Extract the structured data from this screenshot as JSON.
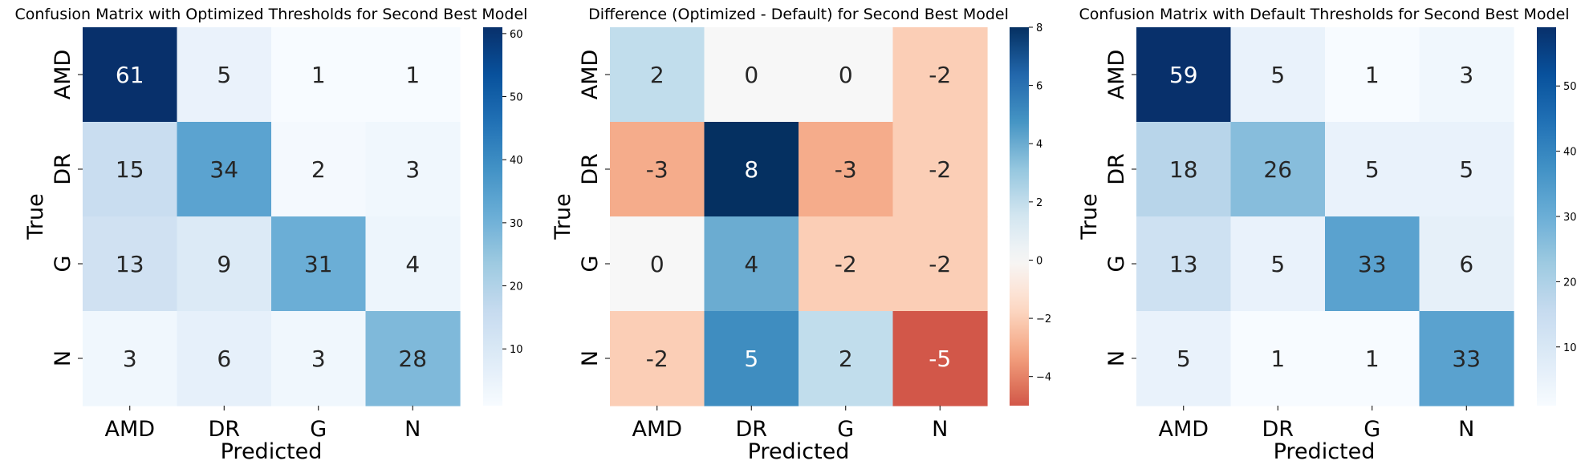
{
  "chart_data": [
    {
      "type": "heatmap",
      "title": "Confusion Matrix with Optimized Thresholds for Second Best Model",
      "xlabel": "Predicted",
      "ylabel": "True",
      "x_categories": [
        "AMD",
        "DR",
        "G",
        "N"
      ],
      "y_categories": [
        "AMD",
        "DR",
        "G",
        "N"
      ],
      "values": [
        [
          61,
          5,
          1,
          1
        ],
        [
          15,
          34,
          2,
          3
        ],
        [
          13,
          9,
          31,
          4
        ],
        [
          3,
          6,
          3,
          28
        ]
      ],
      "colormap": "Blues",
      "vmin": 1,
      "vmax": 61,
      "colorbar_ticks": [
        10,
        20,
        30,
        40,
        50,
        60
      ],
      "colorbar_tick_labels": [
        "10",
        "20",
        "30",
        "40",
        "50",
        "60"
      ]
    },
    {
      "type": "heatmap",
      "title": "Difference (Optimized - Default) for Second Best Model",
      "xlabel": "Predicted",
      "ylabel": "True",
      "x_categories": [
        "AMD",
        "DR",
        "G",
        "N"
      ],
      "y_categories": [
        "AMD",
        "DR",
        "G",
        "N"
      ],
      "values": [
        [
          2,
          0,
          0,
          -2
        ],
        [
          -3,
          8,
          -3,
          -2
        ],
        [
          0,
          4,
          -2,
          -2
        ],
        [
          -2,
          5,
          2,
          -5
        ]
      ],
      "colormap": "RdBu",
      "vmin": -5,
      "vmax": 8,
      "center": 0,
      "colorbar_ticks": [
        -4,
        -2,
        0,
        2,
        4,
        6,
        8
      ],
      "colorbar_tick_labels": [
        "−4",
        "−2",
        "0",
        "2",
        "4",
        "6",
        "8"
      ]
    },
    {
      "type": "heatmap",
      "title": "Confusion Matrix with Default Thresholds for Second Best Model",
      "xlabel": "Predicted",
      "ylabel": "True",
      "x_categories": [
        "AMD",
        "DR",
        "G",
        "N"
      ],
      "y_categories": [
        "AMD",
        "DR",
        "G",
        "N"
      ],
      "values": [
        [
          59,
          5,
          1,
          3
        ],
        [
          18,
          26,
          5,
          5
        ],
        [
          13,
          5,
          33,
          6
        ],
        [
          5,
          1,
          1,
          33
        ]
      ],
      "colormap": "Blues",
      "vmin": 1,
      "vmax": 59,
      "colorbar_ticks": [
        10,
        20,
        30,
        40,
        50
      ],
      "colorbar_tick_labels": [
        "10",
        "20",
        "30",
        "40",
        "50"
      ]
    }
  ]
}
